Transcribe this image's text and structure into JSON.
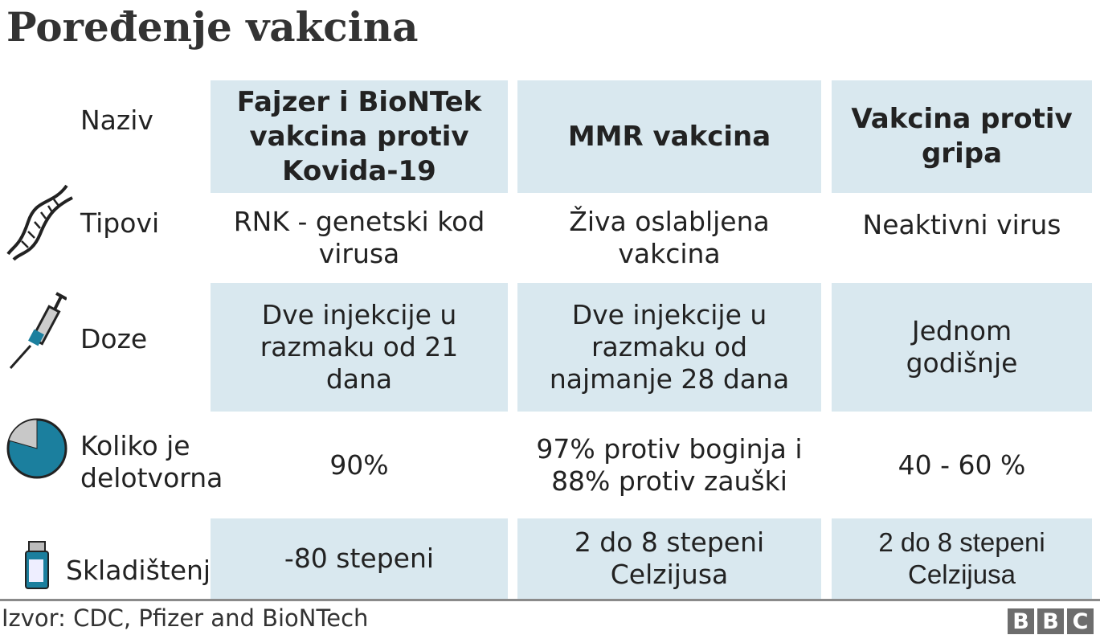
{
  "title": "Poređenje vakcina",
  "rows": [
    {
      "label": "Naziv",
      "icon": "none"
    },
    {
      "label": "Tipovi",
      "icon": "dna-icon"
    },
    {
      "label": "Doze",
      "icon": "syringe-icon"
    },
    {
      "label": "Koliko je delotvorna",
      "icon": "pie-icon"
    },
    {
      "label": "Skladištenje",
      "icon": "vial-icon"
    }
  ],
  "columns": [
    {
      "name": "Fajzer i BioNTek vakcina protiv Kovida-19",
      "type": "RNK  - genetski kod virusa",
      "doses": "Dve injekcije u razmaku od 21 dana",
      "efficacy": "90%",
      "storage": "-80 stepeni"
    },
    {
      "name": "MMR vakcina",
      "type": "Živa oslabljena vakcina",
      "doses": "Dve injekcije u razmaku od najmanje 28 dana",
      "efficacy": "97% protiv boginja i 88% protiv zauški",
      "storage": "2 do 8 stepeni Celzijusa"
    },
    {
      "name": "Vakcina protiv gripa",
      "type": "Neaktivni virus",
      "doses": "Jednom godišnje",
      "efficacy": "40 - 60 %",
      "storage": "2 do 8 stepeni Celzijusa"
    }
  ],
  "colors": {
    "cell_shade": "#d9e8ef",
    "accent": "#1b7f9e"
  },
  "source": "Izvor: CDC, Pfizer and BioNTech",
  "logo": [
    "B",
    "B",
    "C"
  ]
}
